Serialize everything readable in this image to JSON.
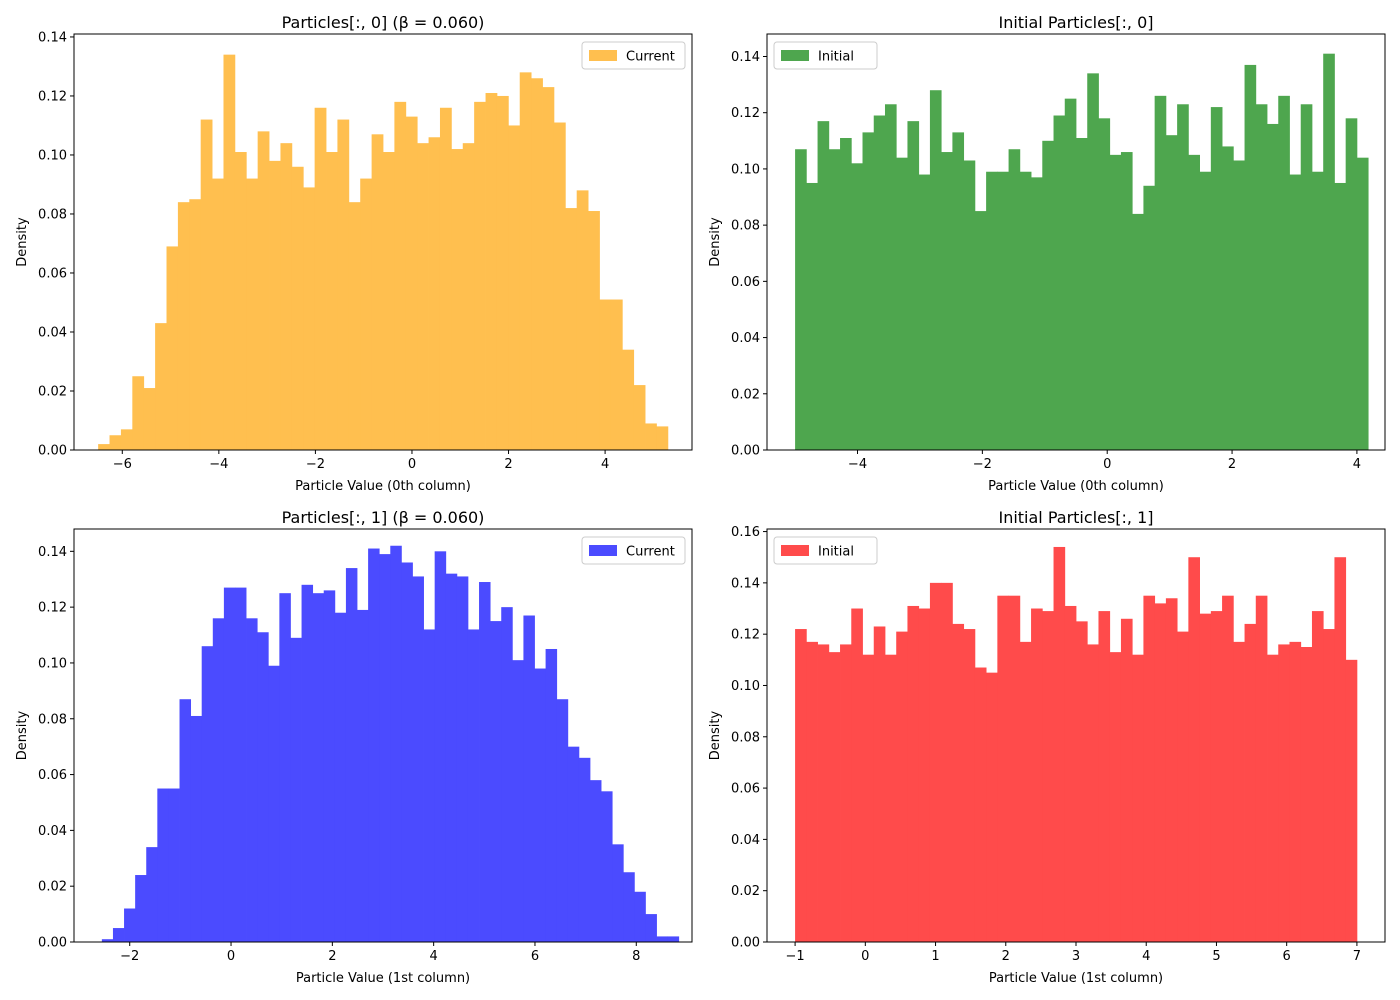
{
  "chart_data": [
    {
      "type": "bar",
      "title": "Particles[:, 0] (β = 0.060)",
      "xlabel": "Particle Value (0th column)",
      "ylabel": "Density",
      "xlim": [
        -7.0,
        5.8
      ],
      "ylim": [
        0,
        0.141
      ],
      "xticks": [
        -6,
        -4,
        -2,
        0,
        2,
        4
      ],
      "xtick_labels": [
        "−6",
        "−4",
        "−2",
        "0",
        "2",
        "4"
      ],
      "yticks": [
        0,
        0.02,
        0.04,
        0.06,
        0.08,
        0.1,
        0.12,
        0.14
      ],
      "ytick_labels": [
        "0.00",
        "0.02",
        "0.04",
        "0.06",
        "0.08",
        "0.10",
        "0.12",
        "0.14"
      ],
      "bin_start": -6.5,
      "bin_width": 0.236,
      "values": [
        0.002,
        0.005,
        0.007,
        0.025,
        0.021,
        0.043,
        0.069,
        0.084,
        0.085,
        0.112,
        0.092,
        0.134,
        0.101,
        0.092,
        0.108,
        0.098,
        0.104,
        0.096,
        0.089,
        0.116,
        0.101,
        0.112,
        0.084,
        0.092,
        0.107,
        0.101,
        0.118,
        0.113,
        0.104,
        0.106,
        0.116,
        0.102,
        0.104,
        0.118,
        0.121,
        0.12,
        0.11,
        0.128,
        0.126,
        0.123,
        0.111,
        0.082,
        0.088,
        0.081,
        0.051,
        0.051,
        0.034,
        0.022,
        0.009,
        0.008
      ],
      "color": "#FFBF4F",
      "legend": "Current",
      "legend_position": "upper right",
      "grid": false
    },
    {
      "type": "bar",
      "title": "Initial Particles[:, 0]",
      "xlabel": "Particle Value (0th column)",
      "ylabel": "Density",
      "xlim": [
        -5.45,
        4.45
      ],
      "ylim": [
        0,
        0.148
      ],
      "xticks": [
        -4,
        -2,
        0,
        2,
        4
      ],
      "xtick_labels": [
        "−4",
        "−2",
        "0",
        "2",
        "4"
      ],
      "yticks": [
        0,
        0.02,
        0.04,
        0.06,
        0.08,
        0.1,
        0.12,
        0.14
      ],
      "ytick_labels": [
        "0.00",
        "0.02",
        "0.04",
        "0.06",
        "0.08",
        "0.10",
        "0.12",
        "0.14"
      ],
      "bin_start": -5.0,
      "bin_width": 0.18,
      "values": [
        0.107,
        0.095,
        0.117,
        0.107,
        0.111,
        0.102,
        0.113,
        0.119,
        0.123,
        0.104,
        0.117,
        0.098,
        0.128,
        0.106,
        0.113,
        0.103,
        0.085,
        0.099,
        0.099,
        0.107,
        0.099,
        0.097,
        0.11,
        0.119,
        0.125,
        0.111,
        0.134,
        0.118,
        0.105,
        0.106,
        0.084,
        0.094,
        0.126,
        0.112,
        0.123,
        0.105,
        0.099,
        0.122,
        0.108,
        0.103,
        0.137,
        0.123,
        0.116,
        0.126,
        0.098,
        0.123,
        0.099,
        0.141,
        0.095,
        0.118,
        0.104
      ],
      "color": "#4EA64E",
      "legend": "Initial",
      "legend_position": "upper left",
      "grid": false
    },
    {
      "type": "bar",
      "title": "Particles[:, 1] (β = 0.060)",
      "xlabel": "Particle Value (1st column)",
      "ylabel": "Density",
      "xlim": [
        -3.1,
        9.1
      ],
      "ylim": [
        0,
        0.148
      ],
      "xticks": [
        -2,
        0,
        2,
        4,
        6,
        8
      ],
      "xtick_labels": [
        "−2",
        "0",
        "2",
        "4",
        "6",
        "8"
      ],
      "yticks": [
        0,
        0.02,
        0.04,
        0.06,
        0.08,
        0.1,
        0.12,
        0.14
      ],
      "ytick_labels": [
        "0.00",
        "0.02",
        "0.04",
        "0.06",
        "0.08",
        "0.10",
        "0.12",
        "0.14"
      ],
      "bin_start": -2.55,
      "bin_width": 0.219,
      "values": [
        0.001,
        0.005,
        0.012,
        0.024,
        0.034,
        0.055,
        0.055,
        0.087,
        0.081,
        0.106,
        0.116,
        0.127,
        0.127,
        0.116,
        0.111,
        0.099,
        0.125,
        0.109,
        0.128,
        0.125,
        0.126,
        0.118,
        0.134,
        0.119,
        0.141,
        0.139,
        0.142,
        0.136,
        0.131,
        0.112,
        0.14,
        0.132,
        0.131,
        0.112,
        0.129,
        0.115,
        0.12,
        0.101,
        0.117,
        0.098,
        0.105,
        0.087,
        0.07,
        0.066,
        0.058,
        0.054,
        0.035,
        0.025,
        0.018,
        0.01,
        0.002,
        0.002
      ],
      "color": "#4B4BFF",
      "legend": "Current",
      "legend_position": "upper right",
      "grid": false
    },
    {
      "type": "bar",
      "title": "Initial Particles[:, 1]",
      "xlabel": "Particle Value (1st column)",
      "ylabel": "Density",
      "xlim": [
        -1.4,
        7.4
      ],
      "ylim": [
        0,
        0.161
      ],
      "xticks": [
        -1,
        0,
        1,
        2,
        3,
        4,
        5,
        6,
        7
      ],
      "xtick_labels": [
        "−1",
        "0",
        "1",
        "2",
        "3",
        "4",
        "5",
        "6",
        "7"
      ],
      "yticks": [
        0,
        0.02,
        0.04,
        0.06,
        0.08,
        0.1,
        0.12,
        0.14,
        0.16
      ],
      "ytick_labels": [
        "0.00",
        "0.02",
        "0.04",
        "0.06",
        "0.08",
        "0.10",
        "0.12",
        "0.14",
        "0.16"
      ],
      "bin_start": -1.0,
      "bin_width": 0.16,
      "values": [
        0.122,
        0.117,
        0.116,
        0.113,
        0.116,
        0.13,
        0.112,
        0.123,
        0.112,
        0.121,
        0.131,
        0.13,
        0.14,
        0.14,
        0.124,
        0.122,
        0.107,
        0.105,
        0.135,
        0.135,
        0.117,
        0.13,
        0.129,
        0.154,
        0.131,
        0.125,
        0.116,
        0.129,
        0.113,
        0.126,
        0.112,
        0.135,
        0.132,
        0.134,
        0.121,
        0.15,
        0.128,
        0.129,
        0.135,
        0.117,
        0.124,
        0.135,
        0.112,
        0.116,
        0.117,
        0.115,
        0.129,
        0.122,
        0.15,
        0.11
      ],
      "color": "#FF4B4B",
      "legend": "Initial",
      "legend_position": "upper left",
      "grid": false
    }
  ]
}
